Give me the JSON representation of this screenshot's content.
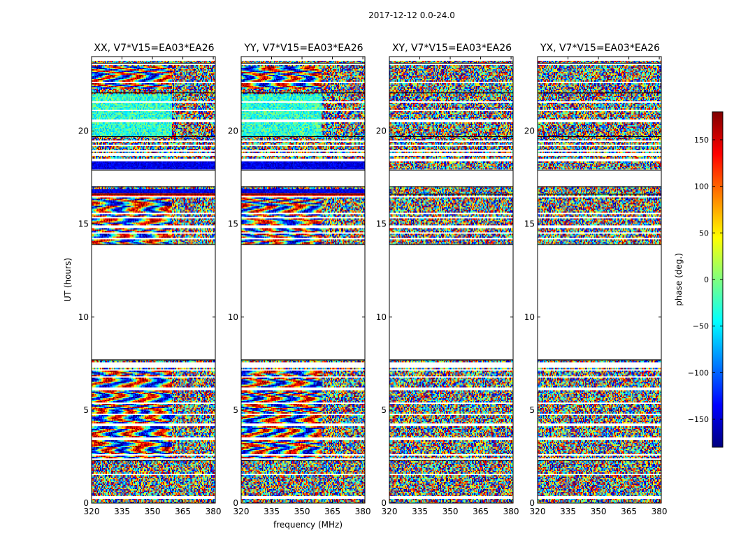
{
  "figure": {
    "suptitle": "2017-12-12 0.0-24.0"
  },
  "colormap": {
    "name": "jet",
    "stops": [
      "#00007f",
      "#0000ff",
      "#007fff",
      "#00ffff",
      "#7fff7f",
      "#ffff00",
      "#ff7f00",
      "#ff0000",
      "#7f0000"
    ]
  },
  "chart_data": [
    {
      "type": "heatmap",
      "title": "XX, V7*V15=EA03*EA26",
      "polarization": "XX",
      "ylabel": "UT (hours)",
      "xlabel": "",
      "xlim": [
        320,
        381
      ],
      "ylim": [
        0,
        24
      ],
      "xticks": [
        320,
        335,
        350,
        365,
        380
      ],
      "yticks": [
        0,
        5,
        10,
        15,
        20
      ],
      "fringe_bands_hours": [
        [
          2.4,
          7.1
        ],
        [
          13.9,
          16.9
        ],
        [
          17.9,
          18.4
        ],
        [
          19.7,
          22.0
        ],
        [
          22.3,
          23.5
        ]
      ],
      "data_gaps_hours": [
        [
          7.7,
          13.9
        ],
        [
          17.0,
          17.9
        ]
      ]
    },
    {
      "type": "heatmap",
      "title": "YY, V7*V15=EA03*EA26",
      "polarization": "YY",
      "ylabel": "",
      "xlabel": "frequency (MHz)",
      "xlim": [
        320,
        381
      ],
      "ylim": [
        0,
        24
      ],
      "xticks": [
        320,
        335,
        350,
        365,
        380
      ],
      "yticks": [
        0,
        5,
        10,
        15,
        20
      ],
      "fringe_bands_hours": [
        [
          2.4,
          7.1
        ],
        [
          13.9,
          16.9
        ],
        [
          17.9,
          18.4
        ],
        [
          19.7,
          22.0
        ],
        [
          22.3,
          23.5
        ]
      ],
      "data_gaps_hours": [
        [
          7.7,
          13.9
        ],
        [
          17.0,
          17.9
        ]
      ]
    },
    {
      "type": "heatmap",
      "title": "XY, V7*V15=EA03*EA26",
      "polarization": "XY",
      "ylabel": "",
      "xlabel": "",
      "xlim": [
        320,
        381
      ],
      "ylim": [
        0,
        24
      ],
      "xticks": [
        320,
        335,
        350,
        365,
        380
      ],
      "yticks": [
        0,
        5,
        10,
        15,
        20
      ],
      "fringe_bands_hours": [],
      "data_gaps_hours": [
        [
          7.7,
          13.9
        ],
        [
          17.0,
          17.9
        ]
      ]
    },
    {
      "type": "heatmap",
      "title": "YX, V7*V15=EA03*EA26",
      "polarization": "YX",
      "ylabel": "",
      "xlabel": "",
      "xlim": [
        320,
        381
      ],
      "ylim": [
        0,
        24
      ],
      "xticks": [
        320,
        335,
        350,
        365,
        380
      ],
      "yticks": [
        0,
        5,
        10,
        15,
        20
      ],
      "fringe_bands_hours": [],
      "data_gaps_hours": [
        [
          7.7,
          13.9
        ],
        [
          17.0,
          17.9
        ]
      ]
    }
  ],
  "colorbar": {
    "label": "phase (deg.)",
    "vmin": -180,
    "vmax": 180,
    "ticks": [
      -150,
      -100,
      -50,
      0,
      50,
      100,
      150
    ],
    "tick_labels": [
      "−150",
      "−100",
      "−50",
      "0",
      "50",
      "100",
      "150"
    ]
  }
}
